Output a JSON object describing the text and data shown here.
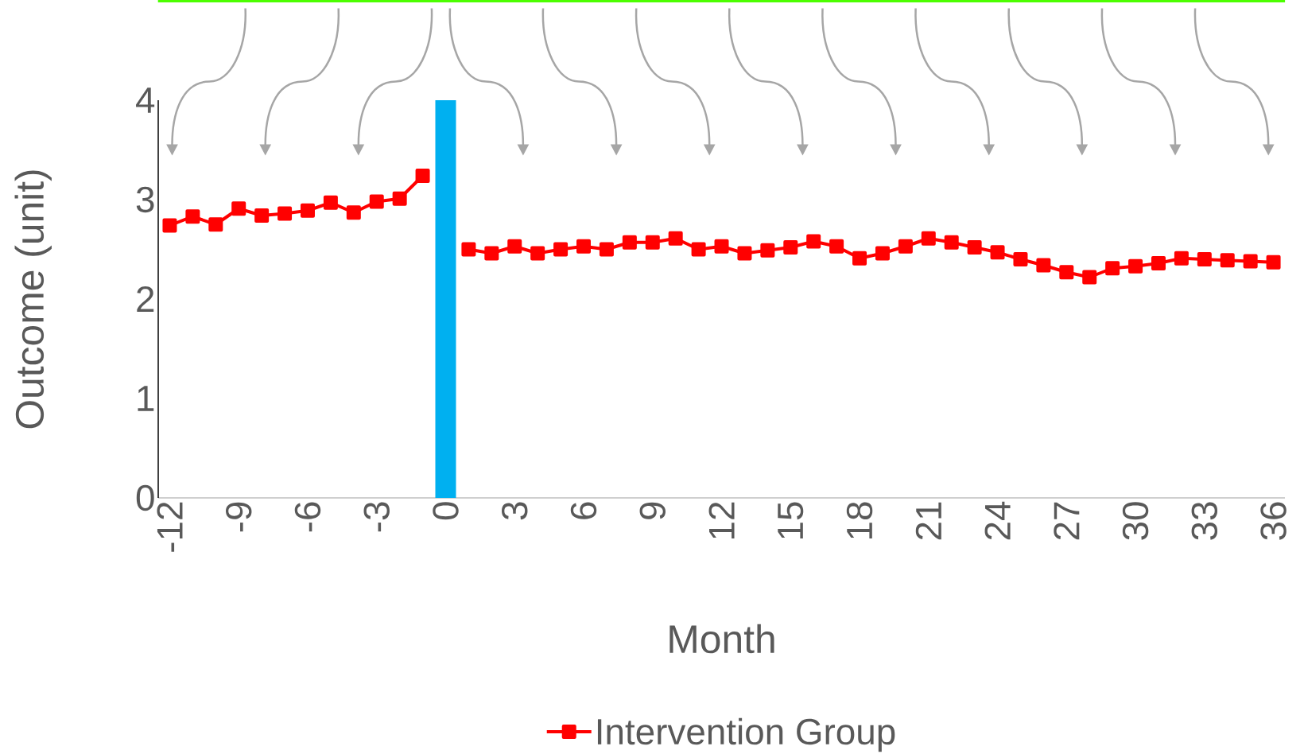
{
  "chart_data": {
    "type": "line",
    "xlabel": "Month",
    "ylabel": "Outcome (unit)",
    "xlim": [
      -12.5,
      36.5
    ],
    "ylim": [
      0,
      4
    ],
    "xticks": [
      -12,
      -9,
      -6,
      -3,
      0,
      3,
      6,
      9,
      12,
      15,
      18,
      21,
      24,
      27,
      30,
      33,
      36
    ],
    "yticks": [
      0,
      1,
      2,
      3,
      4
    ],
    "x": [
      -12,
      -11,
      -10,
      -9,
      -8,
      -7,
      -6,
      -5,
      -4,
      -3,
      -2,
      -1,
      0,
      1,
      2,
      3,
      4,
      5,
      6,
      7,
      8,
      9,
      10,
      11,
      12,
      13,
      14,
      15,
      16,
      17,
      18,
      19,
      20,
      21,
      22,
      23,
      24,
      25,
      26,
      27,
      28,
      29,
      30,
      31,
      32,
      33,
      34,
      35,
      36
    ],
    "series": [
      {
        "name": "Intervention Group",
        "color": "#ff0000",
        "values": [
          2.74,
          2.83,
          2.75,
          2.91,
          2.84,
          2.86,
          2.89,
          2.97,
          2.87,
          2.98,
          3.01,
          3.24,
          null,
          2.5,
          2.46,
          2.53,
          2.46,
          2.5,
          2.53,
          2.5,
          2.57,
          2.57,
          2.61,
          2.5,
          2.53,
          2.46,
          2.49,
          2.52,
          2.58,
          2.53,
          2.41,
          2.46,
          2.53,
          2.61,
          2.57,
          2.52,
          2.47,
          2.4,
          2.34,
          2.27,
          2.22,
          2.31,
          2.33,
          2.36,
          2.41,
          2.4,
          2.39,
          2.38,
          2.37
        ]
      }
    ],
    "ref_lines": [
      {
        "axis": "x",
        "value": 0,
        "color": "#00b0f0"
      }
    ],
    "marker": "square",
    "line_style": "solid",
    "grid": false,
    "legend": "bottom"
  }
}
